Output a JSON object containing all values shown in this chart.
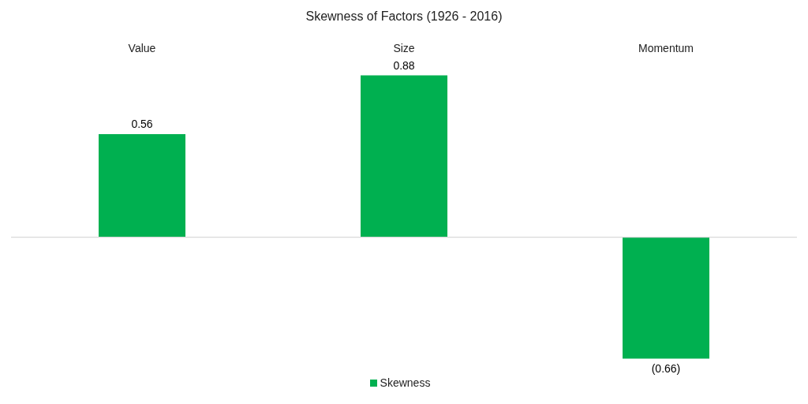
{
  "chart_data": {
    "type": "bar",
    "title": "Skewness of Factors (1926 - 2016)",
    "categories": [
      "Value",
      "Size",
      "Momentum"
    ],
    "series": [
      {
        "name": "Skewness",
        "color": "#00b050",
        "values": [
          0.56,
          0.88,
          -0.66
        ],
        "value_labels": [
          "0.56",
          "0.88",
          "(0.66)"
        ]
      }
    ],
    "legend": "bottom"
  }
}
